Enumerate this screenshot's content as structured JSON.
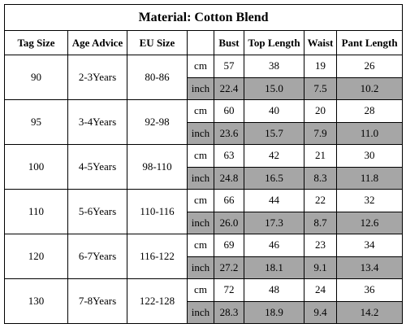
{
  "title": "Material: Cotton Blend",
  "table": {
    "header": [
      "Tag Size",
      "Age Advice",
      "EU Size",
      "Bust",
      "Top Length",
      "Waist",
      "Pant Length"
    ],
    "groups": [
      {
        "tag": "90",
        "age": "2-3Years",
        "eu": "80-86",
        "cm": {
          "unit": "cm",
          "values": [
            "57",
            "38",
            "19",
            "26"
          ]
        },
        "inch": {
          "unit": "inch",
          "values": [
            "22.4",
            "15.0",
            "7.5",
            "10.2"
          ]
        }
      },
      {
        "tag": "95",
        "age": "3-4Years",
        "eu": "92-98",
        "cm": {
          "unit": "cm",
          "values": [
            "60",
            "40",
            "20",
            "28"
          ]
        },
        "inch": {
          "unit": "inch",
          "values": [
            "23.6",
            "15.7",
            "7.9",
            "11.0"
          ]
        }
      },
      {
        "tag": "100",
        "age": "4-5Years",
        "eu": "98-110",
        "cm": {
          "unit": "cm",
          "values": [
            "63",
            "42",
            "21",
            "30"
          ]
        },
        "inch": {
          "unit": "inch",
          "values": [
            "24.8",
            "16.5",
            "8.3",
            "11.8"
          ]
        }
      },
      {
        "tag": "110",
        "age": "5-6Years",
        "eu": "110-116",
        "cm": {
          "unit": "cm",
          "values": [
            "66",
            "44",
            "22",
            "32"
          ]
        },
        "inch": {
          "unit": "inch",
          "values": [
            "26.0",
            "17.3",
            "8.7",
            "12.6"
          ]
        }
      },
      {
        "tag": "120",
        "age": "6-7Years",
        "eu": "116-122",
        "cm": {
          "unit": "cm",
          "values": [
            "69",
            "46",
            "23",
            "34"
          ]
        },
        "inch": {
          "unit": "inch",
          "values": [
            "27.2",
            "18.1",
            "9.1",
            "13.4"
          ]
        }
      },
      {
        "tag": "130",
        "age": "7-8Years",
        "eu": "122-128",
        "cm": {
          "unit": "cm",
          "values": [
            "72",
            "48",
            "24",
            "36"
          ]
        },
        "inch": {
          "unit": "inch",
          "values": [
            "28.3",
            "18.9",
            "9.4",
            "14.2"
          ]
        }
      }
    ]
  }
}
